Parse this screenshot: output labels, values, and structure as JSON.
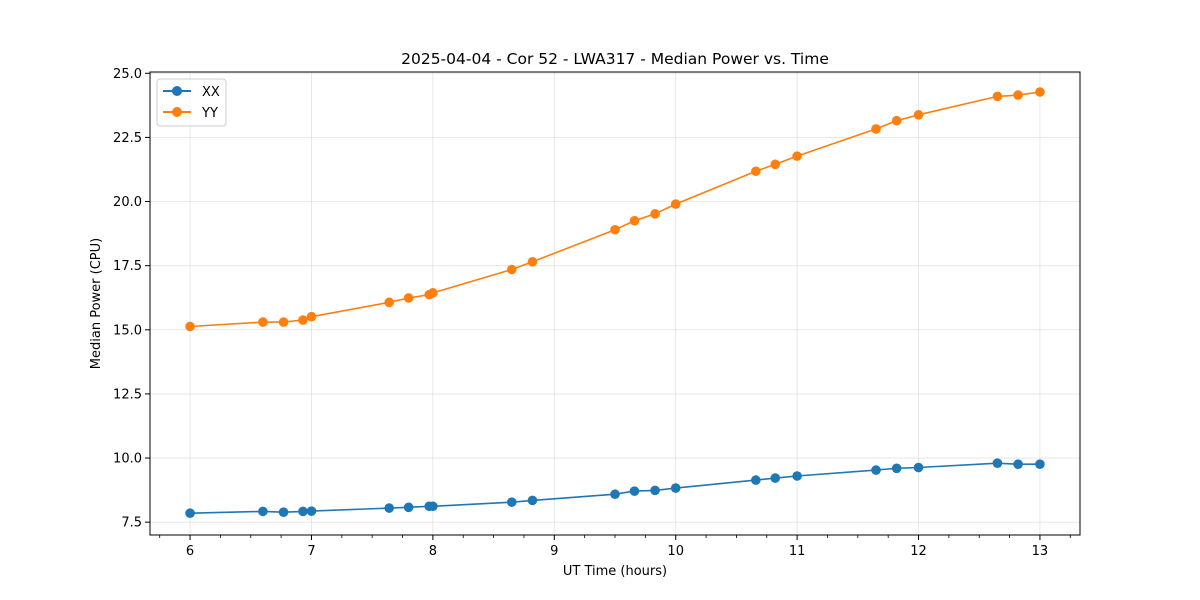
{
  "chart_data": {
    "type": "line",
    "title": "2025-04-04 - Cor 52 - LWA317 - Median Power vs. Time",
    "xlabel": "UT Time (hours)",
    "ylabel": "Median Power (CPU)",
    "xlim": [
      5.67,
      13.33
    ],
    "ylim": [
      7.0,
      25.05
    ],
    "x_ticks": [
      6,
      7,
      8,
      9,
      10,
      11,
      12,
      13
    ],
    "x_tick_labels": [
      "6",
      "7",
      "8",
      "9",
      "10",
      "11",
      "12",
      "13"
    ],
    "x_minor_step": 0.25,
    "y_ticks": [
      7.5,
      10.0,
      12.5,
      15.0,
      17.5,
      20.0,
      22.5,
      25.0
    ],
    "y_tick_labels": [
      "7.5",
      "10.0",
      "12.5",
      "15.0",
      "17.5",
      "20.0",
      "22.5",
      "25.0"
    ],
    "grid": true,
    "legend_position": "top-left",
    "series": [
      {
        "name": "XX",
        "color": "#1f77b4",
        "x": [
          6.0,
          6.6,
          6.77,
          6.93,
          7.0,
          7.64,
          7.8,
          7.97,
          8.0,
          8.65,
          8.82,
          9.5,
          9.66,
          9.83,
          10.0,
          10.66,
          10.82,
          11.0,
          11.65,
          11.82,
          12.0,
          12.65,
          12.82,
          13.0
        ],
        "y": [
          7.85,
          7.92,
          7.89,
          7.92,
          7.93,
          8.05,
          8.08,
          8.12,
          8.12,
          8.28,
          8.35,
          8.59,
          8.71,
          8.74,
          8.83,
          9.14,
          9.22,
          9.3,
          9.53,
          9.6,
          9.63,
          9.8,
          9.76,
          9.76
        ]
      },
      {
        "name": "YY",
        "color": "#ff7f0e",
        "x": [
          6.0,
          6.6,
          6.77,
          6.93,
          7.0,
          7.64,
          7.8,
          7.97,
          8.0,
          8.65,
          8.82,
          9.5,
          9.66,
          9.83,
          10.0,
          10.66,
          10.82,
          11.0,
          11.65,
          11.82,
          12.0,
          12.65,
          12.82,
          13.0
        ],
        "y": [
          15.13,
          15.3,
          15.3,
          15.38,
          15.51,
          16.07,
          16.24,
          16.37,
          16.44,
          17.35,
          17.65,
          18.9,
          19.25,
          19.52,
          19.9,
          21.18,
          21.45,
          21.77,
          22.83,
          23.15,
          23.38,
          24.1,
          24.15,
          24.27
        ]
      }
    ]
  }
}
